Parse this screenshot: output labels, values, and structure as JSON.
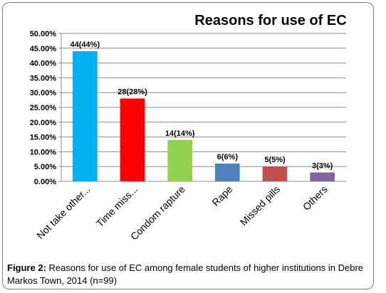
{
  "caption": {
    "prefix": "Figure 2:",
    "text": " Reasons for use of EC among female students of higher institutions in Debre Markos Town, 2014 (n=99)"
  },
  "chart_data": {
    "type": "bar",
    "title": "Reasons for use of EC",
    "categories": [
      "Not take other...",
      "Time miss...",
      "Condom rapture",
      "Rape",
      "Missed pills",
      "Others"
    ],
    "values": [
      44,
      28,
      14,
      6,
      5,
      3
    ],
    "data_labels": [
      "44(44%)",
      "28(28%)",
      "14(14%)",
      "6(6%)",
      "5(5%)",
      "3(3%)"
    ],
    "bar_colors": [
      "#00b0f0",
      "#ff0000",
      "#92d050",
      "#4f81bd",
      "#c0504d",
      "#8064a2"
    ],
    "ylim": [
      0,
      50
    ],
    "yticks": [
      "0.00%",
      "5.00%",
      "10.00%",
      "15.00%",
      "20.00%",
      "25.00%",
      "30.00%",
      "35.00%",
      "40.00%",
      "45.00%",
      "50.00%"
    ],
    "grid": true,
    "legend": "none"
  }
}
